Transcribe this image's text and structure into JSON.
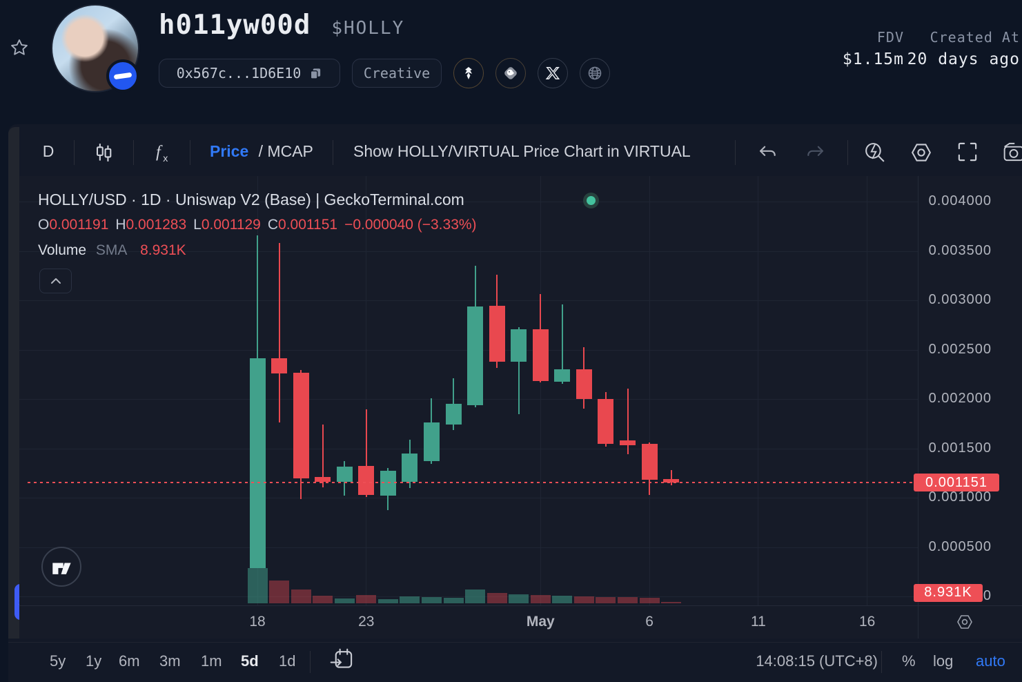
{
  "header": {
    "token_name": "h011yw00d",
    "token_symbol": "$HOLLY",
    "contract_address": "0x567c...1D6E10",
    "tag": "Creative",
    "fdv_label": "FDV",
    "fdv_value": "$1.15m",
    "created_label": "Created At",
    "created_value": "20 days ago"
  },
  "toolbar": {
    "interval": "D",
    "price_label": "Price",
    "mcap_label": "/ MCAP",
    "show_pair_label": "Show HOLLY/VIRTUAL Price Chart in VIRTUAL"
  },
  "legend": {
    "title": "HOLLY/USD · 1D · Uniswap V2 (Base) | GeckoTerminal.com",
    "open_label": "O",
    "open": "0.001191",
    "high_label": "H",
    "high": "0.001283",
    "low_label": "L",
    "low": "0.001129",
    "close_label": "C",
    "close": "0.001151",
    "change": "−0.000040 (−3.33%)",
    "volume_label": "Volume",
    "sma_label": "SMA",
    "sma_value": "8.931K"
  },
  "chart_data": {
    "type": "candlestick",
    "title": "HOLLY/USD · 1D · Uniswap V2 (Base) | GeckoTerminal.com",
    "pair": "HOLLY/USD",
    "interval": "1D",
    "legend_position": "top-left",
    "grid": true,
    "ylim": [
      0,
      0.00427
    ],
    "x": [
      "Apr 18",
      "Apr 19",
      "Apr 20",
      "Apr 21",
      "Apr 22",
      "Apr 23",
      "Apr 24",
      "Apr 25",
      "Apr 26",
      "Apr 27",
      "Apr 28",
      "Apr 29",
      "Apr 30",
      "May 1",
      "May 2",
      "May 3",
      "May 4",
      "May 5",
      "May 6",
      "May 7"
    ],
    "candles": [
      {
        "o": 0.000287,
        "h": 0.003657,
        "l": 0.000287,
        "c": 0.002413,
        "v": 30300
      },
      {
        "o": 0.002413,
        "h": 0.00358,
        "l": 0.001762,
        "c": 0.002259,
        "v": 19600
      },
      {
        "o": 0.002266,
        "h": 0.002294,
        "l": 0.000986,
        "c": 0.001196,
        "v": 11900
      },
      {
        "o": 0.00121,
        "h": 0.001741,
        "l": 0.001105,
        "c": 0.001161,
        "v": 6500
      },
      {
        "o": 0.001161,
        "h": 0.001371,
        "l": 0.001021,
        "c": 0.001315,
        "v": 4200
      },
      {
        "o": 0.001322,
        "h": 0.001895,
        "l": 0.001007,
        "c": 0.001028,
        "v": 7100
      },
      {
        "o": 0.001021,
        "h": 0.001301,
        "l": 0.000874,
        "c": 0.001273,
        "v": 3600
      },
      {
        "o": 0.001161,
        "h": 0.001587,
        "l": 0.001098,
        "c": 0.001448,
        "v": 6000
      },
      {
        "o": 0.001371,
        "h": 0.002007,
        "l": 0.001343,
        "c": 0.001762,
        "v": 5400
      },
      {
        "o": 0.001741,
        "h": 0.00221,
        "l": 0.001685,
        "c": 0.001951,
        "v": 4800
      },
      {
        "o": 0.001937,
        "h": 0.00335,
        "l": 0.001916,
        "c": 0.002937,
        "v": 11900
      },
      {
        "o": 0.002944,
        "h": 0.003259,
        "l": 0.002315,
        "c": 0.002378,
        "v": 8900
      },
      {
        "o": 0.002378,
        "h": 0.002727,
        "l": 0.001846,
        "c": 0.002706,
        "v": 7700
      },
      {
        "o": 0.002706,
        "h": 0.003063,
        "l": 0.002168,
        "c": 0.002182,
        "v": 7100
      },
      {
        "o": 0.002175,
        "h": 0.002958,
        "l": 0.002154,
        "c": 0.002301,
        "v": 6500
      },
      {
        "o": 0.002301,
        "h": 0.002524,
        "l": 0.001902,
        "c": 0.002,
        "v": 6000
      },
      {
        "o": 0.002,
        "h": 0.00207,
        "l": 0.001517,
        "c": 0.001546,
        "v": 5400
      },
      {
        "o": 0.00158,
        "h": 0.002105,
        "l": 0.001441,
        "c": 0.001531,
        "v": 5400
      },
      {
        "o": 0.001546,
        "h": 0.001559,
        "l": 0.001028,
        "c": 0.001182,
        "v": 4800
      },
      {
        "o": 0.001191,
        "h": 0.001283,
        "l": 0.001129,
        "c": 0.001151,
        "v": 1200
      }
    ],
    "y_axis": {
      "ticks": [
        {
          "value": 0.004,
          "label": "0.004000"
        },
        {
          "value": 0.0035,
          "label": "0.003500"
        },
        {
          "value": 0.003,
          "label": "0.003000"
        },
        {
          "value": 0.0025,
          "label": "0.002500"
        },
        {
          "value": 0.002,
          "label": "0.002000"
        },
        {
          "value": 0.0015,
          "label": "0.001500"
        },
        {
          "value": 0.001,
          "label": "0.001000"
        },
        {
          "value": 0.0005,
          "label": "0.000500"
        },
        {
          "value": 0,
          "label": "0"
        }
      ]
    },
    "x_axis": {
      "ticks": [
        {
          "label": "18",
          "i": 0,
          "bold": false
        },
        {
          "label": "23",
          "i": 5,
          "bold": false
        },
        {
          "label": "May",
          "i": 13,
          "bold": true
        },
        {
          "label": "6",
          "i": 18,
          "bold": false
        },
        {
          "label": "11",
          "i": 23,
          "bold": false
        },
        {
          "label": "16",
          "i": 28,
          "bold": false
        }
      ]
    },
    "price_line": {
      "value": 0.001151,
      "label": "0.001151"
    },
    "volume_badge": {
      "value": 8931,
      "label": "8.931K"
    }
  },
  "bottom": {
    "ranges": [
      "5y",
      "1y",
      "6m",
      "3m",
      "1m",
      "5d",
      "1d"
    ],
    "active_range": "5d",
    "time": "14:08:15 (UTC+8)",
    "percent_label": "%",
    "log_label": "log",
    "auto_label": "auto"
  },
  "colors": {
    "up": "#41a18b",
    "down": "#e9484f",
    "up_volume": "rgba(65,161,139,0.52)",
    "down_volume": "rgba(233,72,79,0.40)",
    "accent_blue": "#3179f6",
    "badge_red": "#ee4f56",
    "grid": "#1f2533",
    "axis_text": "#b2b5be"
  },
  "icons": {
    "favorite": "star",
    "copy": "copy-squares",
    "virtuals": "eagle",
    "geckoterminal": "gecko",
    "x_twitter": "X",
    "website": "globe",
    "candles": "candlestick",
    "indicator": "fx",
    "undo": "arrow-undo",
    "redo": "arrow-redo",
    "flash_search": "magnifier-bolt",
    "settings": "hexagon-gear",
    "fullscreen": "corner-brackets",
    "snapshot": "camera",
    "goto_date": "calendar-arrow",
    "collapse_legend": "chevron-up",
    "expand_sidebar": "chevron-right",
    "tradingview_logo": "TV"
  }
}
